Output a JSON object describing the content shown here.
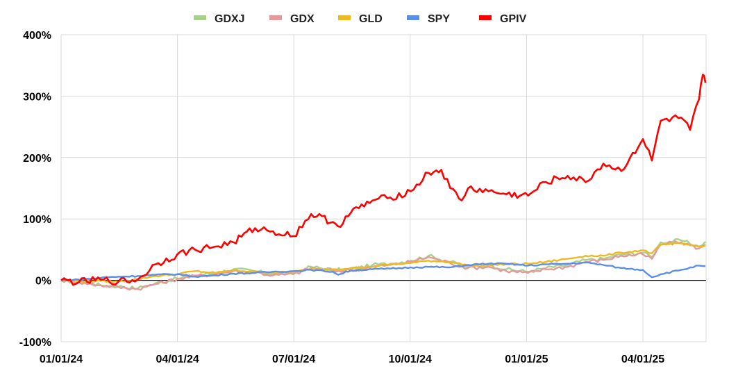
{
  "chart_data": {
    "type": "line",
    "title": "",
    "xlabel": "",
    "ylabel": "",
    "x_ticks": [
      "01/01/24",
      "04/01/24",
      "07/01/24",
      "10/01/24",
      "01/01/25",
      "04/01/25"
    ],
    "y_ticks": [
      "-100%",
      "0%",
      "100%",
      "200%",
      "300%",
      "400%"
    ],
    "ylim": [
      -100,
      400
    ],
    "xlim": [
      "2024-01-01",
      "2025-05-20"
    ],
    "grid": "vertical lines at x ticks, horizontal lines at y ticks",
    "legend_position": "top",
    "series": [
      {
        "name": "GDXJ",
        "color": "#a9d18e",
        "points": [
          [
            "2024-01-01",
            0
          ],
          [
            "2024-01-15",
            -3
          ],
          [
            "2024-02-01",
            -8
          ],
          [
            "2024-02-15",
            -10
          ],
          [
            "2024-03-01",
            -13
          ],
          [
            "2024-03-15",
            -5
          ],
          [
            "2024-04-01",
            3
          ],
          [
            "2024-04-15",
            8
          ],
          [
            "2024-05-01",
            12
          ],
          [
            "2024-05-15",
            18
          ],
          [
            "2024-06-01",
            15
          ],
          [
            "2024-06-15",
            10
          ],
          [
            "2024-07-01",
            12
          ],
          [
            "2024-07-15",
            22
          ],
          [
            "2024-08-01",
            17
          ],
          [
            "2024-08-15",
            18
          ],
          [
            "2024-09-01",
            25
          ],
          [
            "2024-09-15",
            27
          ],
          [
            "2024-10-01",
            32
          ],
          [
            "2024-10-15",
            40
          ],
          [
            "2024-11-01",
            30
          ],
          [
            "2024-11-15",
            22
          ],
          [
            "2024-12-01",
            25
          ],
          [
            "2024-12-15",
            18
          ],
          [
            "2025-01-01",
            14
          ],
          [
            "2025-01-15",
            20
          ],
          [
            "2025-02-01",
            25
          ],
          [
            "2025-02-15",
            33
          ],
          [
            "2025-03-01",
            35
          ],
          [
            "2025-03-15",
            42
          ],
          [
            "2025-04-01",
            45
          ],
          [
            "2025-04-08",
            38
          ],
          [
            "2025-04-15",
            62
          ],
          [
            "2025-05-01",
            65
          ],
          [
            "2025-05-15",
            55
          ],
          [
            "2025-05-20",
            63
          ]
        ]
      },
      {
        "name": "GDX",
        "color": "#e6999a",
        "points": [
          [
            "2024-01-01",
            0
          ],
          [
            "2024-01-15",
            -3
          ],
          [
            "2024-02-01",
            -8
          ],
          [
            "2024-02-15",
            -11
          ],
          [
            "2024-03-01",
            -14
          ],
          [
            "2024-03-15",
            -6
          ],
          [
            "2024-04-01",
            2
          ],
          [
            "2024-04-15",
            7
          ],
          [
            "2024-05-01",
            10
          ],
          [
            "2024-05-15",
            15
          ],
          [
            "2024-06-01",
            13
          ],
          [
            "2024-06-15",
            8
          ],
          [
            "2024-07-01",
            10
          ],
          [
            "2024-07-15",
            20
          ],
          [
            "2024-08-01",
            15
          ],
          [
            "2024-08-15",
            16
          ],
          [
            "2024-09-01",
            22
          ],
          [
            "2024-09-15",
            25
          ],
          [
            "2024-10-01",
            30
          ],
          [
            "2024-10-15",
            38
          ],
          [
            "2024-11-01",
            28
          ],
          [
            "2024-11-15",
            20
          ],
          [
            "2024-12-01",
            22
          ],
          [
            "2024-12-15",
            15
          ],
          [
            "2025-01-01",
            12
          ],
          [
            "2025-01-15",
            18
          ],
          [
            "2025-02-01",
            22
          ],
          [
            "2025-02-15",
            30
          ],
          [
            "2025-03-01",
            33
          ],
          [
            "2025-03-15",
            40
          ],
          [
            "2025-04-01",
            42
          ],
          [
            "2025-04-08",
            35
          ],
          [
            "2025-04-15",
            58
          ],
          [
            "2025-05-01",
            62
          ],
          [
            "2025-05-15",
            52
          ],
          [
            "2025-05-20",
            58
          ]
        ]
      },
      {
        "name": "GLD",
        "color": "#f0b923",
        "points": [
          [
            "2024-01-01",
            0
          ],
          [
            "2024-01-15",
            -1
          ],
          [
            "2024-02-01",
            -1
          ],
          [
            "2024-02-15",
            -2
          ],
          [
            "2024-03-01",
            2
          ],
          [
            "2024-03-15",
            7
          ],
          [
            "2024-04-01",
            10
          ],
          [
            "2024-04-15",
            15
          ],
          [
            "2024-05-01",
            12
          ],
          [
            "2024-05-15",
            16
          ],
          [
            "2024-06-01",
            14
          ],
          [
            "2024-06-15",
            12
          ],
          [
            "2024-07-01",
            14
          ],
          [
            "2024-07-15",
            18
          ],
          [
            "2024-08-01",
            18
          ],
          [
            "2024-08-15",
            20
          ],
          [
            "2024-09-01",
            22
          ],
          [
            "2024-09-15",
            26
          ],
          [
            "2024-10-01",
            28
          ],
          [
            "2024-10-15",
            32
          ],
          [
            "2024-11-01",
            30
          ],
          [
            "2024-11-15",
            24
          ],
          [
            "2024-12-01",
            25
          ],
          [
            "2024-12-15",
            26
          ],
          [
            "2025-01-01",
            27
          ],
          [
            "2025-01-15",
            30
          ],
          [
            "2025-02-01",
            35
          ],
          [
            "2025-02-15",
            40
          ],
          [
            "2025-03-01",
            40
          ],
          [
            "2025-03-15",
            45
          ],
          [
            "2025-04-01",
            49
          ],
          [
            "2025-04-08",
            44
          ],
          [
            "2025-04-15",
            58
          ],
          [
            "2025-05-01",
            60
          ],
          [
            "2025-05-15",
            55
          ],
          [
            "2025-05-20",
            57
          ]
        ]
      },
      {
        "name": "SPY",
        "color": "#5b8ee6",
        "points": [
          [
            "2024-01-01",
            0
          ],
          [
            "2024-01-15",
            1
          ],
          [
            "2024-02-01",
            4
          ],
          [
            "2024-02-15",
            6
          ],
          [
            "2024-03-01",
            7
          ],
          [
            "2024-03-15",
            9
          ],
          [
            "2024-04-01",
            10
          ],
          [
            "2024-04-15",
            6
          ],
          [
            "2024-05-01",
            8
          ],
          [
            "2024-05-15",
            11
          ],
          [
            "2024-06-01",
            12
          ],
          [
            "2024-06-15",
            14
          ],
          [
            "2024-07-01",
            15
          ],
          [
            "2024-07-15",
            17
          ],
          [
            "2024-08-01",
            14
          ],
          [
            "2024-08-05",
            9
          ],
          [
            "2024-08-15",
            16
          ],
          [
            "2024-09-01",
            18
          ],
          [
            "2024-09-15",
            19
          ],
          [
            "2024-10-01",
            21
          ],
          [
            "2024-10-15",
            22
          ],
          [
            "2024-11-01",
            21
          ],
          [
            "2024-11-15",
            25
          ],
          [
            "2024-12-01",
            27
          ],
          [
            "2024-12-15",
            27
          ],
          [
            "2025-01-01",
            24
          ],
          [
            "2025-01-15",
            26
          ],
          [
            "2025-02-01",
            27
          ],
          [
            "2025-02-15",
            29
          ],
          [
            "2025-03-01",
            25
          ],
          [
            "2025-03-15",
            20
          ],
          [
            "2025-04-01",
            17
          ],
          [
            "2025-04-08",
            5
          ],
          [
            "2025-04-15",
            10
          ],
          [
            "2025-05-01",
            17
          ],
          [
            "2025-05-15",
            24
          ],
          [
            "2025-05-20",
            23
          ]
        ]
      },
      {
        "name": "GPIV",
        "color": "#ff0000",
        "points": [
          [
            "2024-01-01",
            0
          ],
          [
            "2024-01-15",
            -3
          ],
          [
            "2024-02-01",
            1
          ],
          [
            "2024-02-15",
            -2
          ],
          [
            "2024-03-01",
            1
          ],
          [
            "2024-03-15",
            26
          ],
          [
            "2024-04-01",
            42
          ],
          [
            "2024-04-15",
            50
          ],
          [
            "2024-05-01",
            55
          ],
          [
            "2024-05-15",
            62
          ],
          [
            "2024-06-01",
            85
          ],
          [
            "2024-06-15",
            80
          ],
          [
            "2024-07-01",
            72
          ],
          [
            "2024-07-15",
            108
          ],
          [
            "2024-08-01",
            95
          ],
          [
            "2024-08-05",
            88
          ],
          [
            "2024-08-15",
            110
          ],
          [
            "2024-09-01",
            130
          ],
          [
            "2024-09-15",
            135
          ],
          [
            "2024-10-01",
            145
          ],
          [
            "2024-10-15",
            175
          ],
          [
            "2024-10-25",
            180
          ],
          [
            "2024-11-01",
            150
          ],
          [
            "2024-11-10",
            130
          ],
          [
            "2024-11-15",
            150
          ],
          [
            "2024-12-01",
            145
          ],
          [
            "2024-12-15",
            140
          ],
          [
            "2025-01-01",
            138
          ],
          [
            "2025-01-15",
            160
          ],
          [
            "2025-02-01",
            170
          ],
          [
            "2025-02-15",
            160
          ],
          [
            "2025-03-01",
            190
          ],
          [
            "2025-03-15",
            178
          ],
          [
            "2025-03-22",
            200
          ],
          [
            "2025-04-01",
            230
          ],
          [
            "2025-04-08",
            195
          ],
          [
            "2025-04-15",
            260
          ],
          [
            "2025-05-01",
            265
          ],
          [
            "2025-05-08",
            245
          ],
          [
            "2025-05-15",
            295
          ],
          [
            "2025-05-18",
            335
          ],
          [
            "2025-05-20",
            322
          ]
        ]
      }
    ]
  }
}
